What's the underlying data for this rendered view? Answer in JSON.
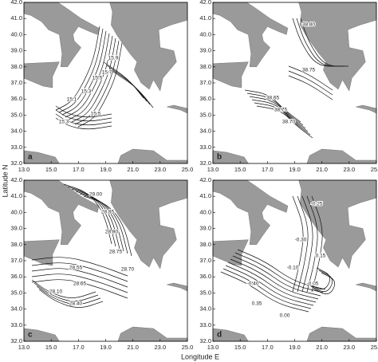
{
  "axes": {
    "x_label": "Longitude E",
    "y_label": "Latitude N",
    "x_ticks": [
      "13.0",
      "15.0",
      "17.0",
      "19.0",
      "21.0",
      "23.0",
      "25.0"
    ],
    "y_ticks": [
      "32.0",
      "33.0",
      "34.0",
      "35.0",
      "36.0",
      "37.0",
      "38.0",
      "39.0",
      "40.0",
      "41.0",
      "42.0"
    ]
  },
  "panels": [
    {
      "label": "a",
      "contour_labels": [
        "15.1",
        "15.3",
        "15.5",
        "15.7",
        "15.9",
        "15.5",
        "15.3"
      ]
    },
    {
      "label": "b",
      "contour_labels": [
        "38.80",
        "38.75",
        "38.65",
        "38.75",
        "38.70"
      ]
    },
    {
      "label": "c",
      "contour_labels": [
        "29.00",
        "28.85",
        "28.80",
        "28.75",
        "28.70",
        "28.55",
        "28.65",
        "28.10",
        "28.40"
      ]
    },
    {
      "label": "d",
      "contour_labels": [
        "-0.25",
        "-0.30",
        "-0.10",
        "-0.40",
        "0.15",
        "-0.05",
        "0.35",
        "0.00"
      ]
    }
  ]
}
